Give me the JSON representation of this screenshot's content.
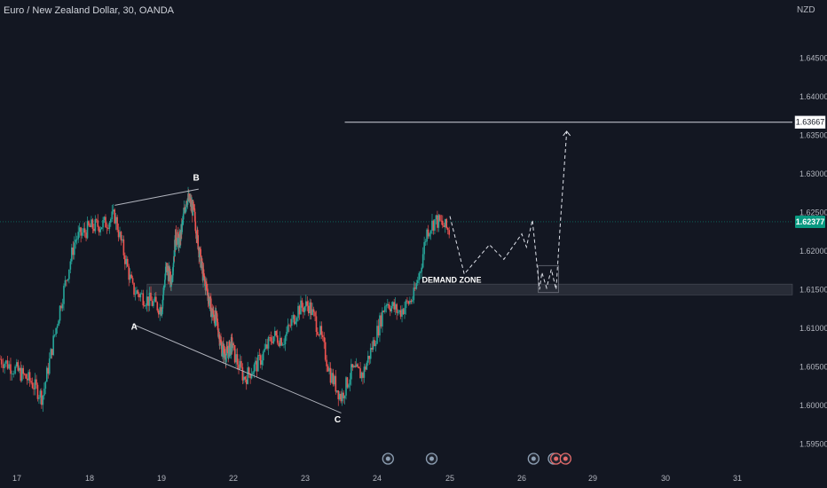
{
  "header": {
    "symbol_title": "Euro / New Zealand Dollar, 30, OANDA",
    "currency": "NZD"
  },
  "colors": {
    "background": "#131722",
    "up": "#26a69a",
    "down": "#ef5350",
    "last_price_badge": "#089981",
    "text": "#d1d4dc",
    "line": "#b2b5be"
  },
  "chart_data": {
    "type": "candlestick",
    "title": "Euro / New Zealand Dollar, 30, OANDA",
    "y_axis": {
      "unit": "NZD",
      "range": [
        1.5925,
        1.6525
      ],
      "ticks": [
        "1.64500",
        "1.64000",
        "1.63500",
        "1.63000",
        "1.62500",
        "1.62000",
        "1.61500",
        "1.61000",
        "1.60500",
        "1.60000",
        "1.59500"
      ]
    },
    "x_axis": {
      "range": [
        16.8,
        31.8
      ],
      "ticks": [
        {
          "t": 17,
          "label": "17"
        },
        {
          "t": 18,
          "label": "18"
        },
        {
          "t": 19,
          "label": "19"
        },
        {
          "t": 22,
          "label": "22"
        },
        {
          "t": 23,
          "label": "23"
        },
        {
          "t": 24,
          "label": "24"
        },
        {
          "t": 25,
          "label": "25"
        },
        {
          "t": 26,
          "label": "26"
        },
        {
          "t": 29,
          "label": "29"
        },
        {
          "t": 30,
          "label": "30"
        },
        {
          "t": 31,
          "label": "31"
        }
      ]
    },
    "price_path": [
      {
        "t": 16.8,
        "p": 1.606
      },
      {
        "t": 17.2,
        "p": 1.603
      },
      {
        "t": 17.35,
        "p": 1.601
      },
      {
        "t": 17.6,
        "p": 1.613
      },
      {
        "t": 17.8,
        "p": 1.6215
      },
      {
        "t": 18.0,
        "p": 1.623
      },
      {
        "t": 18.2,
        "p": 1.6235
      },
      {
        "t": 18.35,
        "p": 1.6245
      },
      {
        "t": 18.6,
        "p": 1.615
      },
      {
        "t": 18.75,
        "p": 1.614
      },
      {
        "t": 19.0,
        "p": 1.6125
      },
      {
        "t": 19.2,
        "p": 1.618
      },
      {
        "t": 19.4,
        "p": 1.616
      },
      {
        "t": 19.6,
        "p": 1.622
      },
      {
        "t": 19.75,
        "p": 1.621
      },
      {
        "t": 20.05,
        "p": 1.627
      },
      {
        "t": 20.2,
        "p": 1.6262
      },
      {
        "t": 20.35,
        "p": 1.625
      },
      {
        "t": 20.55,
        "p": 1.6205
      },
      {
        "t": 20.75,
        "p": 1.6165
      },
      {
        "t": 20.9,
        "p": 1.615
      },
      {
        "t": 21.1,
        "p": 1.612
      },
      {
        "t": 21.3,
        "p": 1.611
      },
      {
        "t": 21.5,
        "p": 1.6075
      },
      {
        "t": 21.7,
        "p": 1.6065
      },
      {
        "t": 21.95,
        "p": 1.608
      },
      {
        "t": 22.15,
        "p": 1.6035
      },
      {
        "t": 22.35,
        "p": 1.6055
      },
      {
        "t": 22.55,
        "p": 1.609
      },
      {
        "t": 22.7,
        "p": 1.6085
      },
      {
        "t": 22.9,
        "p": 1.6125
      },
      {
        "t": 23.05,
        "p": 1.613
      },
      {
        "t": 23.2,
        "p": 1.6095
      },
      {
        "t": 23.35,
        "p": 1.604
      },
      {
        "t": 23.5,
        "p": 1.601
      },
      {
        "t": 23.65,
        "p": 1.6045
      },
      {
        "t": 23.8,
        "p": 1.604
      },
      {
        "t": 24.0,
        "p": 1.6095
      },
      {
        "t": 24.12,
        "p": 1.6135
      },
      {
        "t": 24.3,
        "p": 1.612
      },
      {
        "t": 24.5,
        "p": 1.614
      },
      {
        "t": 24.6,
        "p": 1.618
      },
      {
        "t": 24.68,
        "p": 1.6225
      },
      {
        "t": 24.8,
        "p": 1.624
      },
      {
        "t": 24.88,
        "p": 1.6235
      },
      {
        "t": 25.0,
        "p": 1.6225
      }
    ],
    "last_price": "1.62377",
    "target_price": "1.63667",
    "demand_zone": {
      "label": "DEMAND ZONE",
      "y_low": 1.6143,
      "y_high": 1.6157,
      "t_start": 18.8,
      "t_end": 31.8
    },
    "trendlines": [
      {
        "name": "upper",
        "from": {
          "t": 18.35,
          "p": 1.6259
        },
        "to": {
          "t": 20.55,
          "p": 1.628
        }
      },
      {
        "name": "lower",
        "from": {
          "t": 18.6,
          "p": 1.6105
        },
        "to": {
          "t": 23.5,
          "p": 1.599
        }
      }
    ],
    "projection": [
      {
        "t": 25.0,
        "p": 1.6245
      },
      {
        "t": 25.2,
        "p": 1.617
      },
      {
        "t": 25.55,
        "p": 1.6208
      },
      {
        "t": 25.75,
        "p": 1.6189
      },
      {
        "t": 26.0,
        "p": 1.6222
      },
      {
        "t": 26.2,
        "p": 1.6205
      },
      {
        "t": 26.45,
        "p": 1.624
      },
      {
        "t": 26.75,
        "p": 1.615
      },
      {
        "t": 26.85,
        "p": 1.6172
      },
      {
        "t": 27.05,
        "p": 1.6152
      },
      {
        "t": 27.25,
        "p": 1.6176
      },
      {
        "t": 27.45,
        "p": 1.615
      },
      {
        "t": 27.65,
        "p": 1.6245
      },
      {
        "t": 27.9,
        "p": 1.6355
      }
    ],
    "consolidation_box": {
      "t1": 26.7,
      "t2": 27.55,
      "p_low": 1.6146,
      "p_high": 1.6181
    },
    "target_line": {
      "t_start": 23.55,
      "t_end": 31.8,
      "p": 1.63667
    },
    "points": [
      {
        "label": "A",
        "t": 18.62,
        "p": 1.6098
      },
      {
        "label": "B",
        "t": 20.45,
        "p": 1.6291
      },
      {
        "label": "C",
        "t": 23.45,
        "p": 1.5978
      }
    ],
    "event_markers": [
      {
        "t": 24.15,
        "color": "#8ea0b4"
      },
      {
        "t": 24.75,
        "color": "#8ea0b4"
      },
      {
        "t": 26.5,
        "color": "#8ea0b4"
      },
      {
        "t": 27.35,
        "color": "#8ea0b4"
      },
      {
        "t": 27.45,
        "color": "#e36b6b"
      },
      {
        "t": 27.85,
        "color": "#e36b6b"
      }
    ],
    "grid": false
  }
}
